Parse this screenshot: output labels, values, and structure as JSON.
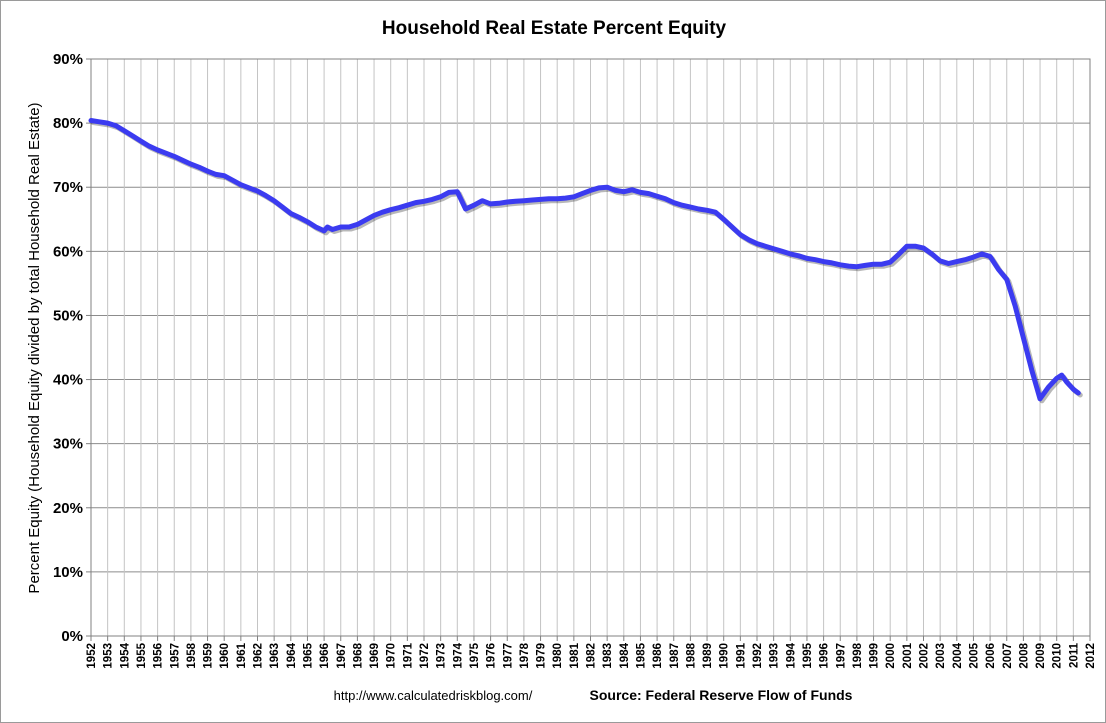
{
  "chart_data": {
    "type": "line",
    "title": "Household Real Estate Percent Equity",
    "ylabel": "Percent Equity (Household Equity divided by total Household Real Estate)",
    "xlabel": "",
    "ylim": [
      0,
      90
    ],
    "xlim": [
      1952,
      2012
    ],
    "y_ticks": [
      "0%",
      "10%",
      "20%",
      "30%",
      "40%",
      "50%",
      "60%",
      "70%",
      "80%",
      "90%"
    ],
    "x_ticks": [
      "1952",
      "1953",
      "1954",
      "1955",
      "1956",
      "1957",
      "1958",
      "1959",
      "1960",
      "1961",
      "1962",
      "1963",
      "1964",
      "1965",
      "1966",
      "1967",
      "1968",
      "1969",
      "1970",
      "1971",
      "1972",
      "1973",
      "1974",
      "1975",
      "1976",
      "1977",
      "1978",
      "1979",
      "1980",
      "1981",
      "1982",
      "1983",
      "1984",
      "1985",
      "1986",
      "1987",
      "1988",
      "1989",
      "1990",
      "1991",
      "1992",
      "1993",
      "1994",
      "1995",
      "1996",
      "1997",
      "1998",
      "1999",
      "2000",
      "2001",
      "2002",
      "2003",
      "2004",
      "2005",
      "2006",
      "2007",
      "2008",
      "2009",
      "2010",
      "2011",
      "2012"
    ],
    "grid": true,
    "legend": "none",
    "series": [
      {
        "color": "#3b3bf0",
        "x": [
          1952.0,
          1952.5,
          1953.0,
          1953.5,
          1954.0,
          1954.5,
          1955.0,
          1955.5,
          1956.0,
          1956.5,
          1957.0,
          1957.5,
          1958.0,
          1958.5,
          1959.0,
          1959.5,
          1960.0,
          1960.5,
          1961.0,
          1961.5,
          1962.0,
          1962.5,
          1963.0,
          1963.5,
          1964.0,
          1964.5,
          1965.0,
          1965.5,
          1966.0,
          1966.2,
          1966.5,
          1967.0,
          1967.5,
          1968.0,
          1968.5,
          1969.0,
          1969.5,
          1970.0,
          1970.5,
          1971.0,
          1971.5,
          1972.0,
          1972.5,
          1973.0,
          1973.5,
          1974.0,
          1974.5,
          1975.0,
          1975.5,
          1976.0,
          1976.5,
          1977.0,
          1977.5,
          1978.0,
          1978.5,
          1979.0,
          1979.5,
          1980.0,
          1980.5,
          1981.0,
          1981.5,
          1982.0,
          1982.5,
          1983.0,
          1983.5,
          1984.0,
          1984.5,
          1985.0,
          1985.5,
          1986.0,
          1986.5,
          1987.0,
          1987.5,
          1988.0,
          1988.5,
          1989.0,
          1989.5,
          1990.0,
          1990.5,
          1991.0,
          1991.5,
          1992.0,
          1992.5,
          1993.0,
          1993.5,
          1994.0,
          1994.5,
          1995.0,
          1995.5,
          1996.0,
          1996.5,
          1997.0,
          1997.5,
          1998.0,
          1998.5,
          1999.0,
          1999.5,
          2000.0,
          2000.5,
          2001.0,
          2001.5,
          2002.0,
          2002.5,
          2003.0,
          2003.5,
          2004.0,
          2004.5,
          2005.0,
          2005.5,
          2006.0,
          2006.5,
          2007.0,
          2007.5,
          2008.0,
          2008.5,
          2009.0,
          2009.5,
          2010.0,
          2010.3,
          2010.6,
          2011.0,
          2011.3
        ],
        "values": [
          80.4,
          80.2,
          80.0,
          79.6,
          78.8,
          78.0,
          77.2,
          76.4,
          75.8,
          75.3,
          74.8,
          74.2,
          73.6,
          73.1,
          72.5,
          72.0,
          71.8,
          71.1,
          70.4,
          69.9,
          69.4,
          68.7,
          67.9,
          66.9,
          65.9,
          65.3,
          64.6,
          63.8,
          63.2,
          63.8,
          63.4,
          63.8,
          63.8,
          64.2,
          64.9,
          65.6,
          66.1,
          66.5,
          66.8,
          67.2,
          67.6,
          67.8,
          68.1,
          68.5,
          69.2,
          69.3,
          66.6,
          67.2,
          67.9,
          67.4,
          67.5,
          67.7,
          67.8,
          67.9,
          68.0,
          68.1,
          68.2,
          68.2,
          68.3,
          68.5,
          69.0,
          69.5,
          69.9,
          70.0,
          69.5,
          69.3,
          69.6,
          69.2,
          69.0,
          68.6,
          68.2,
          67.6,
          67.2,
          66.9,
          66.6,
          66.4,
          66.1,
          65.0,
          63.8,
          62.6,
          61.8,
          61.2,
          60.8,
          60.4,
          60.0,
          59.6,
          59.3,
          58.9,
          58.7,
          58.4,
          58.2,
          57.9,
          57.7,
          57.6,
          57.8,
          58.0,
          58.0,
          58.3,
          59.5,
          60.8,
          60.8,
          60.5,
          59.6,
          58.5,
          58.1,
          58.4,
          58.7,
          59.1,
          59.6,
          59.2,
          57.2,
          55.6,
          51.5,
          46.5,
          41.5,
          37.0,
          38.8,
          40.2,
          40.7,
          39.6,
          38.5,
          37.9
        ]
      }
    ]
  },
  "footer": {
    "url": "http://www.calculatedriskblog.com/",
    "source": "Source: Federal Reserve Flow of Funds"
  }
}
